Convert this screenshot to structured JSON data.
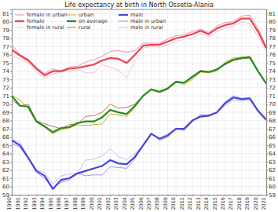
{
  "chart_data": {
    "type": "line",
    "title": "Life expectancy at birth in North Ossetia-Alania",
    "x": [
      1990,
      1991,
      1992,
      1993,
      1994,
      1995,
      1996,
      1997,
      1998,
      1999,
      2000,
      2001,
      2002,
      2003,
      2004,
      2005,
      2006,
      2007,
      2008,
      2009,
      2010,
      2011,
      2012,
      2013,
      2014,
      2015,
      2016,
      2017,
      2018,
      2019,
      2020,
      2021
    ],
    "xlim": [
      1990,
      2021
    ],
    "xticks": [
      1990,
      1991,
      1992,
      1993,
      1994,
      1995,
      1996,
      1997,
      1998,
      1999,
      2000,
      2001,
      2002,
      2003,
      2004,
      2005,
      2006,
      2007,
      2008,
      2009,
      2010,
      2011,
      2012,
      2013,
      2014,
      2015,
      2016,
      2017,
      2018,
      2019,
      2020,
      2021
    ],
    "ylim": [
      59,
      81.5
    ],
    "yticks": [
      59,
      60,
      61,
      62,
      63,
      64,
      65,
      66,
      67,
      68,
      69,
      70,
      71,
      72,
      73,
      74,
      75,
      76,
      77,
      78,
      79,
      80,
      81
    ],
    "grid": true,
    "legend": "top-left",
    "series": [
      {
        "name": "female in urban",
        "color": "#f08cb0",
        "line_style": "thin",
        "values": [
          77.2,
          76.0,
          75.5,
          74.5,
          73.7,
          74.3,
          74.0,
          74.5,
          74.6,
          75.1,
          75.4,
          75.8,
          76.4,
          76.5,
          76.3,
          76.5,
          77.4,
          77.4,
          77.4,
          77.9,
          78.3,
          78.4,
          78.8,
          79.1,
          78.7,
          79.5,
          79.9,
          80.0,
          80.7,
          80.8,
          79.2,
          77.0
        ]
      },
      {
        "name": "female",
        "color": "#e8454b",
        "line_style": "thick",
        "values": [
          76.6,
          75.9,
          75.3,
          74.3,
          73.5,
          74.0,
          74.0,
          74.3,
          74.4,
          74.6,
          74.8,
          75.3,
          75.6,
          75.5,
          75.0,
          76.0,
          77.1,
          77.2,
          77.2,
          77.6,
          78.0,
          78.2,
          78.5,
          78.9,
          78.5,
          79.2,
          79.6,
          79.8,
          80.4,
          80.4,
          78.8,
          76.8
        ]
      },
      {
        "name": "female in rural",
        "color": "#f6c4d6",
        "line_style": "thin",
        "values": [
          75.9,
          75.5,
          75.0,
          73.9,
          73.2,
          73.6,
          73.9,
          74.0,
          74.2,
          73.8,
          73.8,
          74.8,
          74.5,
          74.1,
          73.2,
          75.2,
          76.8,
          77.0,
          76.9,
          77.2,
          77.6,
          77.9,
          78.0,
          78.6,
          78.2,
          78.8,
          79.2,
          79.5,
          80.0,
          79.8,
          78.2,
          76.4
        ]
      },
      {
        "name": "urban",
        "color": "#e0a820",
        "line_style": "thin",
        "values": [
          71.1,
          70.5,
          69.5,
          67.8,
          67.2,
          66.4,
          66.9,
          67.1,
          67.5,
          67.4,
          67.5,
          67.6,
          68.8,
          68.7,
          68.5,
          69.6,
          71.1,
          71.7,
          71.4,
          71.8,
          72.7,
          72.4,
          73.0,
          73.9,
          73.8,
          74.0,
          75.1,
          75.6,
          75.7,
          75.8,
          74.0,
          72.6
        ]
      },
      {
        "name": "on average",
        "color": "#1f8f1f",
        "line_style": "thick",
        "values": [
          71.0,
          69.8,
          69.7,
          67.9,
          67.3,
          66.6,
          67.1,
          67.2,
          67.7,
          67.9,
          67.9,
          68.4,
          69.3,
          69.0,
          68.8,
          69.8,
          71.0,
          71.8,
          71.5,
          71.9,
          72.7,
          72.6,
          73.3,
          74.0,
          73.9,
          74.2,
          74.9,
          75.4,
          75.6,
          75.7,
          74.0,
          72.5
        ]
      },
      {
        "name": "rural",
        "color": "#c4705c",
        "line_style": "thin",
        "values": [
          70.5,
          69.8,
          70.0,
          68.0,
          67.6,
          67.3,
          67.0,
          67.5,
          67.6,
          68.5,
          68.6,
          69.0,
          70.0,
          69.5,
          69.6,
          70.0,
          71.0,
          71.8,
          71.5,
          72.0,
          72.8,
          72.6,
          73.4,
          74.1,
          73.9,
          74.3,
          74.8,
          75.3,
          75.5,
          75.6,
          74.0,
          72.4
        ]
      },
      {
        "name": "male",
        "color": "#4646dc",
        "line_style": "thick",
        "values": [
          65.6,
          65.0,
          63.5,
          61.9,
          61.3,
          59.7,
          60.8,
          61.0,
          61.6,
          61.9,
          62.2,
          62.5,
          63.2,
          62.8,
          62.7,
          63.6,
          65.0,
          66.4,
          65.8,
          66.2,
          67.0,
          67.0,
          68.0,
          68.5,
          68.6,
          69.0,
          70.1,
          70.8,
          70.6,
          70.7,
          69.2,
          68.1
        ]
      },
      {
        "name": "male in urban",
        "color": "#a48ef0",
        "line_style": "thin",
        "values": [
          65.2,
          64.8,
          63.4,
          61.7,
          61.0,
          59.8,
          60.5,
          60.8,
          61.6,
          61.3,
          61.4,
          61.4,
          62.4,
          62.3,
          62.2,
          63.4,
          65.1,
          66.5,
          65.6,
          66.0,
          67.1,
          66.8,
          67.9,
          68.7,
          68.7,
          69.0,
          70.3,
          71.0,
          70.7,
          70.8,
          69.3,
          68.2
        ]
      },
      {
        "name": "male in rural",
        "color": "#bcc4f6",
        "line_style": "thin",
        "values": [
          65.8,
          65.4,
          63.6,
          62.0,
          61.7,
          60.3,
          61.3,
          61.5,
          61.6,
          63.2,
          63.3,
          63.7,
          64.6,
          63.6,
          63.3,
          64.0,
          65.0,
          66.3,
          65.9,
          66.4,
          67.0,
          67.1,
          68.0,
          68.4,
          68.5,
          69.0,
          69.8,
          70.5,
          70.4,
          70.5,
          69.0,
          68.0
        ]
      }
    ]
  }
}
